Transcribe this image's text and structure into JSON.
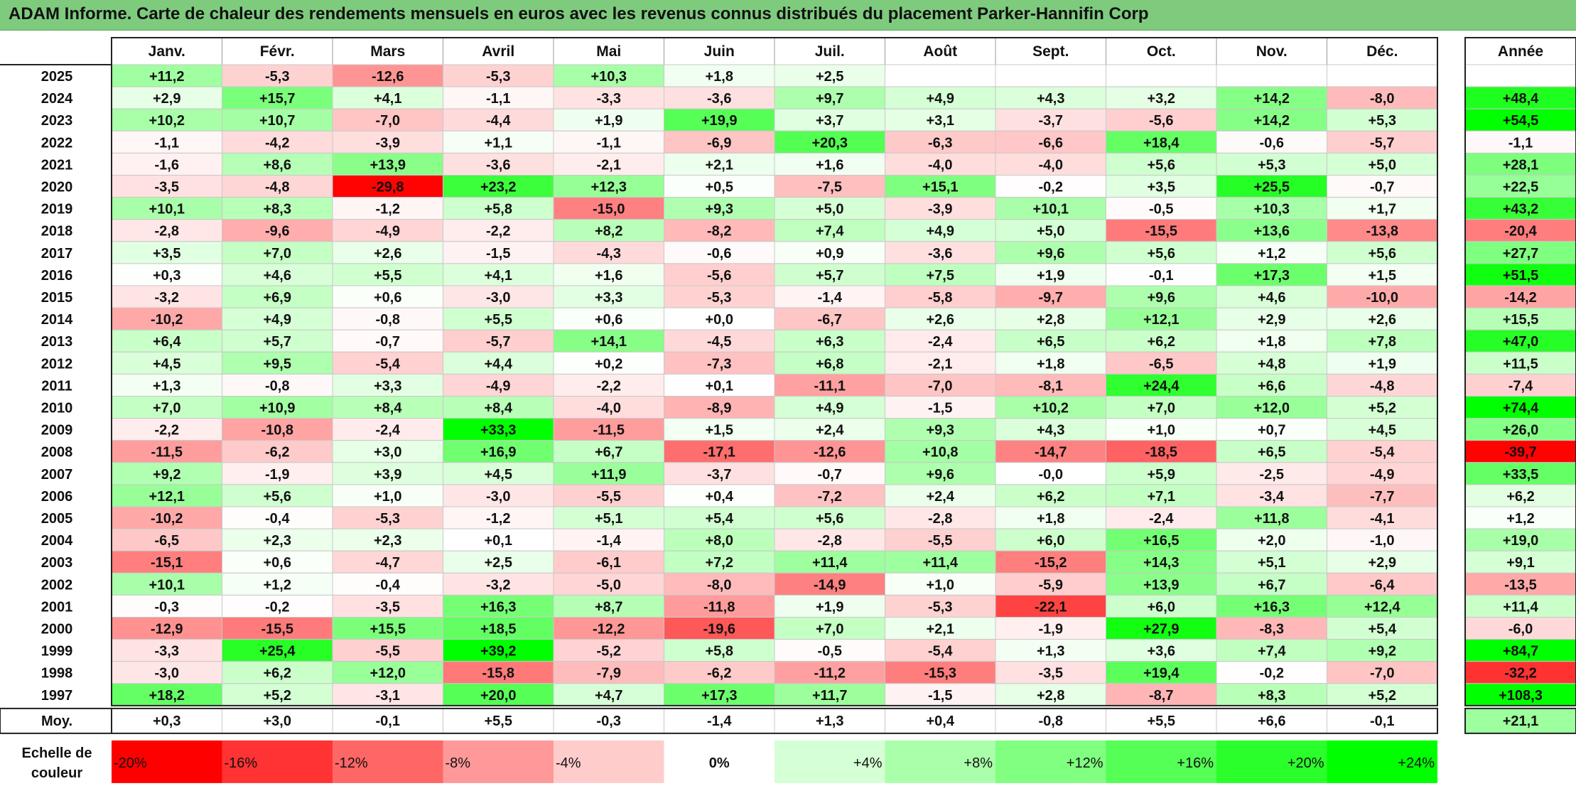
{
  "title": "ADAM Informe. Carte de chaleur des rendements mensuels en euros avec les revenus connus distribués du placement Parker-Hannifin Corp",
  "chart_data": {
    "type": "heatmap",
    "title": "ADAM Informe. Carte de chaleur des rendements mensuels en euros avec les revenus connus distribués du placement Parker-Hannifin Corp",
    "months": [
      "Janv.",
      "Févr.",
      "Mars",
      "Avril",
      "Mai",
      "Juin",
      "Juil.",
      "Août",
      "Sept.",
      "Oct.",
      "Nov.",
      "Déc."
    ],
    "year_header": "Année",
    "rows": [
      {
        "label": "2025",
        "values": [
          "+11,2",
          "-5,3",
          "-12,6",
          "-5,3",
          "+10,3",
          "+1,8",
          "+2,5",
          "",
          "",
          "",
          "",
          ""
        ],
        "year": ""
      },
      {
        "label": "2024",
        "values": [
          "+2,9",
          "+15,7",
          "+4,1",
          "-1,1",
          "-3,3",
          "-3,6",
          "+9,7",
          "+4,9",
          "+4,3",
          "+3,2",
          "+14,2",
          "-8,0"
        ],
        "year": "+48,4"
      },
      {
        "label": "2023",
        "values": [
          "+10,2",
          "+10,7",
          "-7,0",
          "-4,4",
          "+1,9",
          "+19,9",
          "+3,7",
          "+3,1",
          "-3,7",
          "-5,6",
          "+14,2",
          "+5,3"
        ],
        "year": "+54,5"
      },
      {
        "label": "2022",
        "values": [
          "-1,1",
          "-4,2",
          "-3,9",
          "+1,1",
          "-1,1",
          "-6,9",
          "+20,3",
          "-6,3",
          "-6,6",
          "+18,4",
          "-0,6",
          "-5,7"
        ],
        "year": "-1,1"
      },
      {
        "label": "2021",
        "values": [
          "-1,6",
          "+8,6",
          "+13,9",
          "-3,6",
          "-2,1",
          "+2,1",
          "+1,6",
          "-4,0",
          "-4,0",
          "+5,6",
          "+5,3",
          "+5,0"
        ],
        "year": "+28,1"
      },
      {
        "label": "2020",
        "values": [
          "-3,5",
          "-4,8",
          "-29,8",
          "+23,2",
          "+12,3",
          "+0,5",
          "-7,5",
          "+15,1",
          "-0,2",
          "+3,5",
          "+25,5",
          "-0,7"
        ],
        "year": "+22,5"
      },
      {
        "label": "2019",
        "values": [
          "+10,1",
          "+8,3",
          "-1,2",
          "+5,8",
          "-15,0",
          "+9,3",
          "+5,0",
          "-3,9",
          "+10,1",
          "-0,5",
          "+10,3",
          "+1,7"
        ],
        "year": "+43,2"
      },
      {
        "label": "2018",
        "values": [
          "-2,8",
          "-9,6",
          "-4,9",
          "-2,2",
          "+8,2",
          "-8,2",
          "+7,4",
          "+4,9",
          "+5,0",
          "-15,5",
          "+13,6",
          "-13,8"
        ],
        "year": "-20,4"
      },
      {
        "label": "2017",
        "values": [
          "+3,5",
          "+7,0",
          "+2,6",
          "-1,5",
          "-4,3",
          "-0,6",
          "+0,9",
          "-3,6",
          "+9,6",
          "+5,6",
          "+1,2",
          "+5,6"
        ],
        "year": "+27,7"
      },
      {
        "label": "2016",
        "values": [
          "+0,3",
          "+4,6",
          "+5,5",
          "+4,1",
          "+1,6",
          "-5,6",
          "+5,7",
          "+7,5",
          "+1,9",
          "-0,1",
          "+17,3",
          "+1,5"
        ],
        "year": "+51,5"
      },
      {
        "label": "2015",
        "values": [
          "-3,2",
          "+6,9",
          "+0,6",
          "-3,0",
          "+3,3",
          "-5,3",
          "-1,4",
          "-5,8",
          "-9,7",
          "+9,6",
          "+4,6",
          "-10,0"
        ],
        "year": "-14,2"
      },
      {
        "label": "2014",
        "values": [
          "-10,2",
          "+4,9",
          "-0,8",
          "+5,5",
          "+0,6",
          "+0,0",
          "-6,7",
          "+2,6",
          "+2,8",
          "+12,1",
          "+2,9",
          "+2,6"
        ],
        "year": "+15,5"
      },
      {
        "label": "2013",
        "values": [
          "+6,4",
          "+5,7",
          "-0,7",
          "-5,7",
          "+14,1",
          "-4,5",
          "+6,3",
          "-2,4",
          "+6,5",
          "+6,2",
          "+1,8",
          "+7,8"
        ],
        "year": "+47,0"
      },
      {
        "label": "2012",
        "values": [
          "+4,5",
          "+9,5",
          "-5,4",
          "+4,4",
          "+0,2",
          "-7,3",
          "+6,8",
          "-2,1",
          "+1,8",
          "-6,5",
          "+4,8",
          "+1,9"
        ],
        "year": "+11,5"
      },
      {
        "label": "2011",
        "values": [
          "+1,3",
          "-0,8",
          "+3,3",
          "-4,9",
          "-2,2",
          "+0,1",
          "-11,1",
          "-7,0",
          "-8,1",
          "+24,4",
          "+6,6",
          "-4,8"
        ],
        "year": "-7,4"
      },
      {
        "label": "2010",
        "values": [
          "+7,0",
          "+10,9",
          "+8,4",
          "+8,4",
          "-4,0",
          "-8,9",
          "+4,9",
          "-1,5",
          "+10,2",
          "+7,0",
          "+12,0",
          "+5,2"
        ],
        "year": "+74,4"
      },
      {
        "label": "2009",
        "values": [
          "-2,2",
          "-10,8",
          "-2,4",
          "+33,3",
          "-11,5",
          "+1,5",
          "+2,4",
          "+9,3",
          "+4,3",
          "+1,0",
          "+0,7",
          "+4,5"
        ],
        "year": "+26,0"
      },
      {
        "label": "2008",
        "values": [
          "-11,5",
          "-6,2",
          "+3,0",
          "+16,9",
          "+6,7",
          "-17,1",
          "-12,6",
          "+10,8",
          "-14,7",
          "-18,5",
          "+6,5",
          "-5,4"
        ],
        "year": "-39,7"
      },
      {
        "label": "2007",
        "values": [
          "+9,2",
          "-1,9",
          "+3,9",
          "+4,5",
          "+11,9",
          "-3,7",
          "-0,7",
          "+9,6",
          "-0,0",
          "+5,9",
          "-2,5",
          "-4,9"
        ],
        "year": "+33,5"
      },
      {
        "label": "2006",
        "values": [
          "+12,1",
          "+5,6",
          "+1,0",
          "-3,0",
          "-5,5",
          "+0,4",
          "-7,2",
          "+2,4",
          "+6,2",
          "+7,1",
          "-3,4",
          "-7,7"
        ],
        "year": "+6,2"
      },
      {
        "label": "2005",
        "values": [
          "-10,2",
          "-0,4",
          "-5,3",
          "-1,2",
          "+5,1",
          "+5,4",
          "+5,6",
          "-2,8",
          "+1,8",
          "-2,4",
          "+11,8",
          "-4,1"
        ],
        "year": "+1,2"
      },
      {
        "label": "2004",
        "values": [
          "-6,5",
          "+2,3",
          "+2,3",
          "+0,1",
          "-1,4",
          "+8,0",
          "-2,8",
          "-5,5",
          "+6,0",
          "+16,5",
          "+2,0",
          "-1,0"
        ],
        "year": "+19,0"
      },
      {
        "label": "2003",
        "values": [
          "-15,1",
          "+0,6",
          "-4,7",
          "+2,5",
          "-6,1",
          "+7,2",
          "+11,4",
          "+11,4",
          "-15,2",
          "+14,3",
          "+5,1",
          "+2,9"
        ],
        "year": "+9,1"
      },
      {
        "label": "2002",
        "values": [
          "+10,1",
          "+1,2",
          "-0,4",
          "-3,2",
          "-5,0",
          "-8,0",
          "-14,9",
          "+1,0",
          "-5,9",
          "+13,9",
          "+6,7",
          "-6,4"
        ],
        "year": "-13,5"
      },
      {
        "label": "2001",
        "values": [
          "-0,3",
          "-0,2",
          "-3,5",
          "+16,3",
          "+8,7",
          "-11,8",
          "+1,9",
          "-5,3",
          "-22,1",
          "+6,0",
          "+16,3",
          "+12,4"
        ],
        "year": "+11,4"
      },
      {
        "label": "2000",
        "values": [
          "-12,9",
          "-15,5",
          "+15,5",
          "+18,5",
          "-12,2",
          "-19,6",
          "+7,0",
          "+2,1",
          "-1,9",
          "+27,9",
          "-8,3",
          "+5,4"
        ],
        "year": "-6,0"
      },
      {
        "label": "1999",
        "values": [
          "-3,3",
          "+25,4",
          "-5,5",
          "+39,2",
          "-5,2",
          "+5,8",
          "-0,5",
          "-5,4",
          "+1,3",
          "+3,6",
          "+7,4",
          "+9,2"
        ],
        "year": "+84,7"
      },
      {
        "label": "1998",
        "values": [
          "-3,0",
          "+6,2",
          "+12,0",
          "-15,8",
          "-7,9",
          "-6,2",
          "-11,2",
          "-15,3",
          "-3,5",
          "+19,4",
          "-0,2",
          "-7,0"
        ],
        "year": "-32,2"
      },
      {
        "label": "1997",
        "values": [
          "+18,2",
          "+5,2",
          "-3,1",
          "+20,0",
          "+4,7",
          "+17,3",
          "+11,7",
          "-1,5",
          "+2,8",
          "-8,7",
          "+8,3",
          "+5,2"
        ],
        "year": "+108,3"
      }
    ],
    "average": {
      "label": "Moy.",
      "values": [
        "+0,3",
        "+3,0",
        "-0,1",
        "+5,5",
        "-0,3",
        "-1,4",
        "+1,3",
        "+0,4",
        "-0,8",
        "+5,5",
        "+6,6",
        "-0,1"
      ],
      "year": "+21,1"
    },
    "scale": {
      "label_line1": "Echelle de",
      "label_line2": "couleur",
      "labels": [
        "-20%",
        "-16%",
        "-12%",
        "-8%",
        "-4%",
        "0%",
        "+4%",
        "+8%",
        "+12%",
        "+16%",
        "+20%",
        "+24%"
      ]
    },
    "colors": {
      "negative_max": "#ff0000",
      "neutral": "#ffffff",
      "positive_max": "#00ff00"
    }
  }
}
